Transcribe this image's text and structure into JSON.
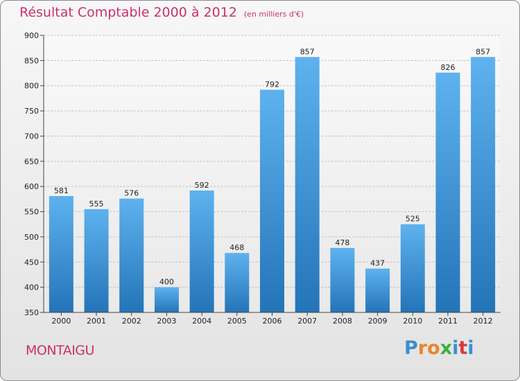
{
  "header": {
    "title": "Résultat Comptable 2000 à 2012",
    "unit": "(en milliers d'€)"
  },
  "footer": {
    "commune": "MONTAIGU",
    "logo_letters": [
      "P",
      "r",
      "o",
      "x",
      "i",
      "t",
      "i"
    ],
    "logo_colors": [
      "#3a8fd1",
      "#e8862a",
      "#e8862a",
      "#3cae3c",
      "#3a8fd1",
      "#d93a3a",
      "#3a8fd1"
    ]
  },
  "colors": {
    "bar_light": "#5eb2ee",
    "bar_dark": "#2474b8",
    "accent": "#c8326e"
  },
  "chart_data": {
    "type": "bar",
    "title": "Résultat Comptable 2000 à 2012",
    "subtitle": "(en milliers d'€)",
    "xlabel": "",
    "ylabel": "",
    "categories": [
      "2000",
      "2001",
      "2002",
      "2003",
      "2004",
      "2005",
      "2006",
      "2007",
      "2008",
      "2009",
      "2010",
      "2011",
      "2012"
    ],
    "values": [
      581,
      555,
      576,
      400,
      592,
      468,
      792,
      857,
      478,
      437,
      525,
      826,
      857
    ],
    "value_labels": [
      "581",
      "555",
      "576",
      "400",
      "592",
      "468",
      "792",
      "857",
      "478",
      "437",
      "525",
      "826",
      "857"
    ],
    "ylim": [
      350,
      900
    ],
    "yticks": [
      350,
      400,
      450,
      500,
      550,
      600,
      650,
      700,
      750,
      800,
      850,
      900
    ],
    "ytick_labels": [
      "350",
      "400",
      "450",
      "500",
      "550",
      "600",
      "650",
      "700",
      "750",
      "800",
      "850",
      "900"
    ],
    "grid": true
  }
}
